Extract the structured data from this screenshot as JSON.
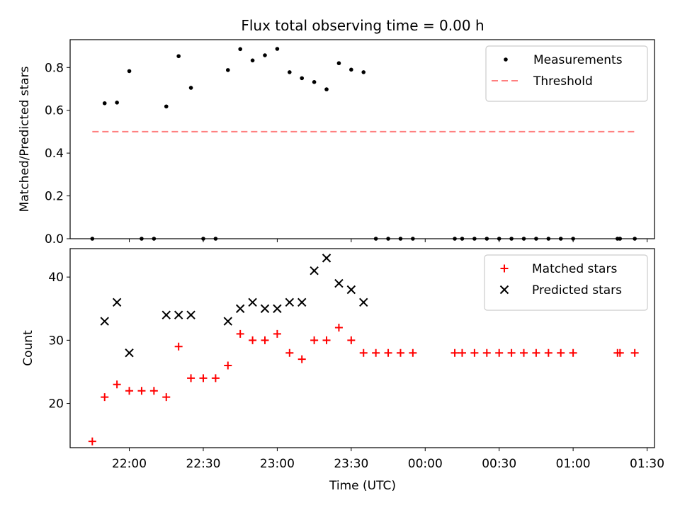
{
  "figure": {
    "title": "Flux total observing time = 0.00 h",
    "xlabel": "Time (UTC)"
  },
  "chart_data": [
    {
      "type": "scatter",
      "ylabel": "Matched/Predicted stars",
      "ylim": [
        0,
        0.93
      ],
      "yticks": [
        0.0,
        0.2,
        0.4,
        0.6,
        0.8
      ],
      "ytick_labels": [
        "0.0",
        "0.2",
        "0.4",
        "0.6",
        "0.8"
      ],
      "legend_position": "top-right",
      "series": [
        {
          "name": "Measurements",
          "marker": "dot",
          "color": "#000000",
          "x": [
            "21:45",
            "21:50",
            "21:55",
            "22:00",
            "22:05",
            "22:10",
            "22:15",
            "22:20",
            "22:25",
            "22:30",
            "22:35",
            "22:40",
            "22:45",
            "22:50",
            "22:55",
            "23:00",
            "23:05",
            "23:10",
            "23:15",
            "23:20",
            "23:25",
            "23:30",
            "23:35",
            "23:40",
            "23:45",
            "23:50",
            "23:55",
            "00:12",
            "00:15",
            "00:20",
            "00:25",
            "00:30",
            "00:35",
            "00:40",
            "00:45",
            "00:50",
            "00:55",
            "01:00",
            "01:18",
            "01:19",
            "01:25"
          ],
          "y": [
            0.0,
            0.633,
            0.636,
            0.783,
            0.0,
            0.0,
            0.618,
            0.853,
            0.705,
            0.0,
            0.0,
            0.788,
            0.886,
            0.833,
            0.857,
            0.887,
            0.778,
            0.75,
            0.732,
            0.698,
            0.82,
            0.79,
            0.778,
            0.0,
            0.0,
            0.0,
            0.0,
            0.0,
            0.0,
            0.0,
            0.0,
            0.0,
            0.0,
            0.0,
            0.0,
            0.0,
            0.0,
            0.0,
            0.0,
            0.0,
            0.0
          ]
        },
        {
          "name": "Threshold",
          "marker": "dashed-line",
          "color": "#ff7f7f",
          "x": [
            "21:45",
            "01:25"
          ],
          "y": [
            0.5,
            0.5
          ]
        }
      ]
    },
    {
      "type": "scatter",
      "ylabel": "Count",
      "ylim": [
        13,
        44.5
      ],
      "yticks": [
        20,
        30,
        40
      ],
      "ytick_labels": [
        "20",
        "30",
        "40"
      ],
      "legend_position": "top-right",
      "series": [
        {
          "name": "Matched stars",
          "marker": "plus",
          "color": "#ff0000",
          "x": [
            "21:45",
            "21:50",
            "21:55",
            "22:00",
            "22:05",
            "22:10",
            "22:15",
            "22:20",
            "22:25",
            "22:30",
            "22:35",
            "22:40",
            "22:45",
            "22:50",
            "22:55",
            "23:00",
            "23:05",
            "23:10",
            "23:15",
            "23:20",
            "23:25",
            "23:30",
            "23:35",
            "23:40",
            "23:45",
            "23:50",
            "23:55",
            "00:12",
            "00:15",
            "00:20",
            "00:25",
            "00:30",
            "00:35",
            "00:40",
            "00:45",
            "00:50",
            "00:55",
            "01:00",
            "01:18",
            "01:19",
            "01:25"
          ],
          "y": [
            14,
            21,
            23,
            22,
            22,
            22,
            21,
            29,
            24,
            24,
            24,
            26,
            31,
            30,
            30,
            31,
            28,
            27,
            30,
            30,
            32,
            30,
            28,
            28,
            28,
            28,
            28,
            28,
            28,
            28,
            28,
            28,
            28,
            28,
            28,
            28,
            28,
            28,
            28,
            28,
            28
          ]
        },
        {
          "name": "Predicted stars",
          "marker": "x",
          "color": "#000000",
          "x": [
            "21:50",
            "21:55",
            "22:00",
            "22:15",
            "22:20",
            "22:25",
            "22:40",
            "22:45",
            "22:50",
            "22:55",
            "23:00",
            "23:05",
            "23:10",
            "23:15",
            "23:20",
            "23:25",
            "23:30",
            "23:35"
          ],
          "y": [
            33,
            36,
            28,
            34,
            34,
            34,
            33,
            35,
            36,
            35,
            35,
            36,
            36,
            41,
            43,
            39,
            38,
            36
          ]
        }
      ]
    }
  ],
  "xaxis": {
    "ticks": [
      "22:00",
      "22:30",
      "23:00",
      "23:30",
      "00:00",
      "00:30",
      "01:00",
      "01:30"
    ],
    "range": [
      "21:36",
      "01:33"
    ]
  }
}
